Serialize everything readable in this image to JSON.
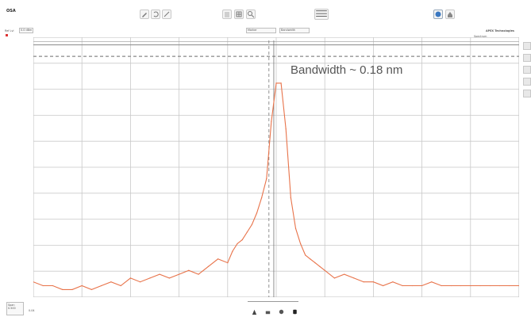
{
  "window": {
    "title": "OSA"
  },
  "toolbar": {
    "buttons": [
      {
        "name": "draw-pen-icon"
      },
      {
        "name": "undo-arrow-icon"
      },
      {
        "name": "zoom-wand-icon"
      },
      {
        "name": "document-icon"
      },
      {
        "name": "grid-icon"
      },
      {
        "name": "search-icon"
      },
      {
        "name": "trace-table-icon"
      },
      {
        "name": "globe-icon"
      },
      {
        "name": "home-icon"
      }
    ]
  },
  "header": {
    "ref_label": "Ref Lvl",
    "ref_value": "0.0 dBm",
    "marker_label": "Marker",
    "bandwidth_label": "Bandwidth",
    "brand": "APEX Technologies",
    "spectrum_label": "Spectrum"
  },
  "annotation": {
    "text": "Bandwidth ~ 0.18 nm"
  },
  "chart_data": {
    "type": "line",
    "title": "",
    "xlabel": "",
    "ylabel": "",
    "series": [
      {
        "color": "#e8734a",
        "x": [
          0,
          2,
          4,
          6,
          8,
          10,
          12,
          14,
          16,
          18,
          20,
          22,
          24,
          26,
          28,
          30,
          32,
          34,
          36,
          38,
          40,
          41,
          42,
          43,
          44,
          45,
          46,
          47,
          48,
          49,
          50,
          51,
          52,
          53,
          54,
          55,
          56,
          57,
          58,
          59,
          60,
          62,
          64,
          66,
          68,
          70,
          72,
          74,
          76,
          78,
          80,
          82,
          84,
          86,
          88,
          90,
          92,
          94,
          96,
          98,
          100
        ],
        "y": [
          -62,
          -63,
          -63,
          -64,
          -64,
          -63,
          -64,
          -63,
          -62,
          -63,
          -61,
          -62,
          -61,
          -60,
          -61,
          -60,
          -59,
          -60,
          -58,
          -56,
          -57,
          -54,
          -52,
          -51,
          -49,
          -47,
          -44,
          -40,
          -35,
          -20,
          -10,
          -10,
          -22,
          -40,
          -48,
          -52,
          -55,
          -56,
          -57,
          -58,
          -59,
          -61,
          -60,
          -61,
          -62,
          -62,
          -63,
          -62,
          -63,
          -63,
          -63,
          -62,
          -63,
          -63,
          -63,
          -63,
          -63,
          -63,
          -63,
          -63,
          -63
        ]
      }
    ],
    "reference_lines": {
      "solid_top": 0,
      "dashed_level": -3
    },
    "grid": true
  },
  "status": {
    "span_label": "Span",
    "span_value": "0.500",
    "rbw_label": "RBW",
    "rbw_value": "0.04"
  },
  "colors": {
    "trace": "#e8734a",
    "grid": "#c9c9c9",
    "axis_text": "#777777"
  }
}
